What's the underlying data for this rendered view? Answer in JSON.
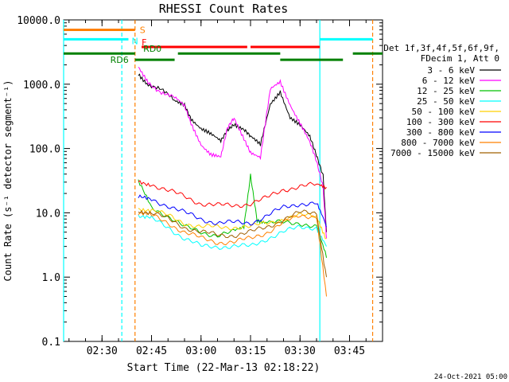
{
  "chart_data": {
    "type": "line",
    "title": "RHESSI Count Rates",
    "xlabel": "Start Time (22-Mar-13 02:18:22)",
    "ylabel": "Count Rate (s⁻¹ detector segment⁻¹)",
    "yscale": "log",
    "ylim": [
      0.1,
      10000
    ],
    "xlim": [
      "02:18:22",
      "03:55:00"
    ],
    "x_ticks": [
      "02:30",
      "02:45",
      "03:00",
      "03:15",
      "03:30",
      "03:45"
    ],
    "y_ticks": [
      "0.1",
      "1.0",
      "10.0",
      "100.0",
      "1000.0",
      "10000.0"
    ],
    "legend_header": [
      "Det 1f,3f,4f,5f,6f,9f,",
      "FDecim 1, Att 0"
    ],
    "legend_position": "right",
    "footer": "24-Oct-2021 05:00",
    "series": [
      {
        "name": "3 - 6 keV",
        "color": "#000000",
        "x": [
          "02:41",
          "02:44",
          "02:48",
          "02:52",
          "02:55",
          "02:57",
          "03:00",
          "03:03",
          "03:06",
          "03:08",
          "03:10",
          "03:13",
          "03:15",
          "03:18",
          "03:21",
          "03:24",
          "03:27",
          "03:30",
          "03:33",
          "03:35",
          "03:37",
          "03:38"
        ],
        "y": [
          1500,
          1000,
          800,
          550,
          500,
          300,
          200,
          160,
          130,
          200,
          250,
          200,
          150,
          110,
          500,
          800,
          300,
          220,
          150,
          80,
          40,
          5
        ]
      },
      {
        "name": "6 - 12 keV",
        "color": "#ff00ff",
        "x": [
          "02:41",
          "02:44",
          "02:48",
          "02:52",
          "02:55",
          "02:57",
          "03:00",
          "03:03",
          "03:06",
          "03:08",
          "03:10",
          "03:13",
          "03:15",
          "03:18",
          "03:21",
          "03:24",
          "03:27",
          "03:30",
          "03:33",
          "03:35",
          "03:37",
          "03:38"
        ],
        "y": [
          1800,
          1100,
          750,
          600,
          450,
          250,
          120,
          80,
          70,
          200,
          300,
          150,
          90,
          70,
          800,
          1100,
          500,
          250,
          120,
          60,
          25,
          4
        ]
      },
      {
        "name": "12 - 25 keV",
        "color": "#00c000",
        "x": [
          "02:41",
          "02:45",
          "02:50",
          "02:55",
          "03:00",
          "03:05",
          "03:10",
          "03:13",
          "03:15",
          "03:17",
          "03:20",
          "03:25",
          "03:30",
          "03:35",
          "03:38"
        ],
        "y": [
          30,
          12,
          9,
          6,
          5,
          4.5,
          5,
          6,
          40,
          8,
          7,
          7,
          7,
          6,
          2
        ]
      },
      {
        "name": "25 - 50 keV",
        "color": "#00ffff",
        "x": [
          "02:41",
          "02:45",
          "02:50",
          "02:55",
          "03:00",
          "03:05",
          "03:10",
          "03:15",
          "03:20",
          "03:25",
          "03:30",
          "03:35",
          "03:38"
        ],
        "y": [
          9,
          8,
          6,
          4,
          3,
          3,
          3,
          3,
          4,
          5,
          6,
          6,
          3
        ]
      },
      {
        "name": "50 - 100 keV",
        "color": "#ffd000",
        "x": [
          "02:41",
          "02:45",
          "02:50",
          "02:55",
          "03:00",
          "03:05",
          "03:10",
          "03:15",
          "03:20",
          "03:25",
          "03:30",
          "03:35",
          "03:38"
        ],
        "y": [
          12,
          11,
          9,
          7,
          6,
          6,
          6,
          6,
          7,
          8,
          9,
          9,
          4
        ]
      },
      {
        "name": "100 - 300 keV",
        "color": "#ff0000",
        "x": [
          "02:41",
          "02:45",
          "02:50",
          "02:55",
          "03:00",
          "03:05",
          "03:10",
          "03:15",
          "03:20",
          "03:25",
          "03:30",
          "03:35",
          "03:38"
        ],
        "y": [
          30,
          28,
          22,
          18,
          14,
          13,
          13,
          14,
          17,
          23,
          26,
          27,
          25
        ]
      },
      {
        "name": "300 - 800 keV",
        "color": "#0000ff",
        "x": [
          "02:41",
          "02:45",
          "02:50",
          "02:55",
          "03:00",
          "03:05",
          "03:10",
          "03:15",
          "03:20",
          "03:25",
          "03:30",
          "03:35",
          "03:38"
        ],
        "y": [
          17,
          16,
          13,
          10,
          8,
          7,
          7,
          7,
          9,
          12,
          14,
          14,
          6
        ]
      },
      {
        "name": "800 - 7000 keV",
        "color": "#ff8000",
        "x": [
          "02:41",
          "02:45",
          "02:50",
          "02:55",
          "03:00",
          "03:05",
          "03:10",
          "03:15",
          "03:20",
          "03:25",
          "03:30",
          "03:35",
          "03:38"
        ],
        "y": [
          10,
          9,
          7,
          5,
          4,
          3.5,
          3.5,
          4,
          5,
          7,
          9,
          9,
          0.5
        ]
      },
      {
        "name": "7000 - 15000 keV",
        "color": "#a06000",
        "x": [
          "02:41",
          "02:45",
          "02:50",
          "02:55",
          "03:00",
          "03:05",
          "03:10",
          "03:15",
          "03:20",
          "03:25",
          "03:30",
          "03:35",
          "03:38"
        ],
        "y": [
          11,
          10,
          8,
          6,
          5,
          4.5,
          4.5,
          5,
          6,
          8,
          10,
          10,
          1
        ]
      }
    ],
    "flag_bars": [
      {
        "label": "S",
        "color": "#ff8000",
        "level": 7000,
        "segments": [
          [
            "02:18:22",
            "02:40"
          ]
        ]
      },
      {
        "label": "N",
        "color": "#00ffff",
        "level": 5000,
        "segments": [
          [
            "02:18:22",
            "02:38"
          ],
          [
            "03:36",
            "03:52"
          ]
        ]
      },
      {
        "label": "F",
        "color": "#ff0000",
        "level": 3800,
        "segments": [
          [
            "02:42",
            "03:14"
          ],
          [
            "03:15",
            "03:36"
          ]
        ]
      },
      {
        "label": "RD0",
        "color": "#008000",
        "level": 3000,
        "segments": [
          [
            "02:18:22",
            "02:40"
          ],
          [
            "02:53",
            "03:24"
          ],
          [
            "03:46",
            "03:55"
          ]
        ]
      },
      {
        "label": "RD6",
        "color": "#008000",
        "level": 2400,
        "segments": [
          [
            "02:40",
            "02:52"
          ],
          [
            "03:24",
            "03:43"
          ]
        ]
      }
    ],
    "vertical_markers": [
      {
        "time": "02:36",
        "color": "#00ffff",
        "style": "dashed"
      },
      {
        "time": "02:40",
        "color": "#ff8000",
        "style": "dashed"
      },
      {
        "time": "03:36",
        "color": "#00ffff",
        "style": "solid"
      },
      {
        "time": "03:52",
        "color": "#ff8000",
        "style": "dashed"
      },
      {
        "time": "02:18:22",
        "color": "#00ffff",
        "style": "solid"
      }
    ]
  }
}
